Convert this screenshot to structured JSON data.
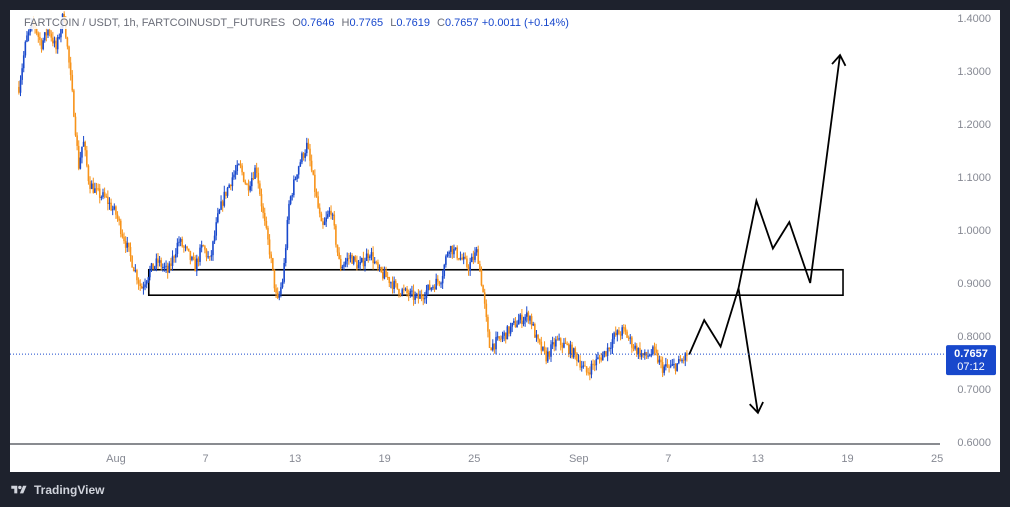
{
  "header": {
    "symbol": "FARTCOIN / USDT, 1h, FARTCOINUSDT_FUTURES",
    "o_label": "O",
    "o_value": "0.7646",
    "h_label": "H",
    "h_value": "0.7765",
    "l_label": "L",
    "l_value": "0.7619",
    "c_label": "C",
    "c_value": "0.7657",
    "change": "+0.0011 (+0.14%)"
  },
  "price_tag": {
    "price": "0.7657",
    "countdown": "07:12"
  },
  "footer": {
    "brand": "TradingView"
  },
  "colors": {
    "up": "#1848cc",
    "down": "#f7931a",
    "tag": "#1848cc",
    "axis_text": "#868993",
    "drawing": "#000000",
    "background": "#ffffff"
  },
  "chart_data": {
    "type": "candlestick",
    "interval": "1h",
    "y_axis": {
      "ticks": [
        0.6,
        0.7,
        0.8,
        0.9,
        1.0,
        1.1,
        1.2,
        1.3,
        1.4
      ],
      "labels": [
        "0.6000",
        "0.7000",
        "0.8000",
        "0.9000",
        "1.0000",
        "1.1000",
        "1.2000",
        "1.3000",
        "1.4000"
      ],
      "range": [
        0.6,
        1.4
      ]
    },
    "x_axis": {
      "ticks": [
        {
          "label": "Aug",
          "day": 1
        },
        {
          "label": "7",
          "day": 7
        },
        {
          "label": "13",
          "day": 13
        },
        {
          "label": "19",
          "day": 19
        },
        {
          "label": "25",
          "day": 25
        },
        {
          "label": "Sep",
          "day": 32
        },
        {
          "label": "7",
          "day": 38
        },
        {
          "label": "13",
          "day": 44
        },
        {
          "label": "19",
          "day": 50
        },
        {
          "label": "25",
          "day": 56
        }
      ],
      "range_days": [
        -5.5,
        62
      ]
    },
    "last_price": 0.7657,
    "price_path": [
      [
        -5.5,
        1.27
      ],
      [
        -5,
        1.36
      ],
      [
        -4.5,
        1.39
      ],
      [
        -4,
        1.35
      ],
      [
        -3.5,
        1.38
      ],
      [
        -3,
        1.34
      ],
      [
        -2.5,
        1.41
      ],
      [
        -2.2,
        1.33
      ],
      [
        -1.8,
        1.22
      ],
      [
        -1.5,
        1.12
      ],
      [
        -1.2,
        1.17
      ],
      [
        -0.8,
        1.09
      ],
      [
        -0.3,
        1.07
      ],
      [
        0.3,
        1.06
      ],
      [
        1,
        1.03
      ],
      [
        1.6,
        0.98
      ],
      [
        2.2,
        0.93
      ],
      [
        2.7,
        0.89
      ],
      [
        3.2,
        0.92
      ],
      [
        3.8,
        0.94
      ],
      [
        4.5,
        0.92
      ],
      [
        5.2,
        0.98
      ],
      [
        5.7,
        0.96
      ],
      [
        6.3,
        0.93
      ],
      [
        6.8,
        0.97
      ],
      [
        7.3,
        0.94
      ],
      [
        7.8,
        1.02
      ],
      [
        8.2,
        1.06
      ],
      [
        8.8,
        1.1
      ],
      [
        9.3,
        1.12
      ],
      [
        9.8,
        1.08
      ],
      [
        10.4,
        1.12
      ],
      [
        10.9,
        1.02
      ],
      [
        11.3,
        0.96
      ],
      [
        11.8,
        0.86
      ],
      [
        12.2,
        0.91
      ],
      [
        12.6,
        1.05
      ],
      [
        13.2,
        1.12
      ],
      [
        13.8,
        1.16
      ],
      [
        14.3,
        1.08
      ],
      [
        14.8,
        1.0
      ],
      [
        15.4,
        1.04
      ],
      [
        16,
        0.93
      ],
      [
        16.7,
        0.95
      ],
      [
        17.3,
        0.93
      ],
      [
        18,
        0.96
      ],
      [
        18.6,
        0.92
      ],
      [
        19.2,
        0.91
      ],
      [
        19.8,
        0.89
      ],
      [
        20.5,
        0.88
      ],
      [
        21.2,
        0.87
      ],
      [
        22,
        0.89
      ],
      [
        22.8,
        0.91
      ],
      [
        23.3,
        0.97
      ],
      [
        24,
        0.95
      ],
      [
        24.6,
        0.93
      ],
      [
        25.2,
        0.96
      ],
      [
        25.6,
        0.88
      ],
      [
        26,
        0.78
      ],
      [
        26.6,
        0.79
      ],
      [
        27.3,
        0.81
      ],
      [
        28,
        0.83
      ],
      [
        28.7,
        0.84
      ],
      [
        29.2,
        0.79
      ],
      [
        29.8,
        0.76
      ],
      [
        30.5,
        0.79
      ],
      [
        31.2,
        0.78
      ],
      [
        31.9,
        0.76
      ],
      [
        32.5,
        0.73
      ],
      [
        33.1,
        0.75
      ],
      [
        33.8,
        0.77
      ],
      [
        34.4,
        0.8
      ],
      [
        35,
        0.81
      ],
      [
        35.7,
        0.78
      ],
      [
        36.4,
        0.76
      ],
      [
        37,
        0.77
      ],
      [
        37.6,
        0.74
      ],
      [
        38.2,
        0.74
      ],
      [
        38.8,
        0.75
      ],
      [
        39.3,
        0.7657
      ]
    ],
    "drawings": {
      "zone": {
        "price_top": 0.925,
        "price_bottom": 0.877,
        "day_start": 3.2,
        "day_end": 49.7
      },
      "bull_path": [
        [
          39.4,
          0.765
        ],
        [
          40.4,
          0.83
        ],
        [
          41.5,
          0.78
        ],
        [
          42.7,
          0.89
        ],
        [
          43.9,
          1.055
        ],
        [
          45.0,
          0.965
        ],
        [
          46.1,
          1.015
        ],
        [
          47.5,
          0.9
        ],
        [
          49.5,
          1.33
        ]
      ],
      "bear_path": [
        [
          42.7,
          0.89
        ],
        [
          44.0,
          0.655
        ]
      ]
    }
  }
}
